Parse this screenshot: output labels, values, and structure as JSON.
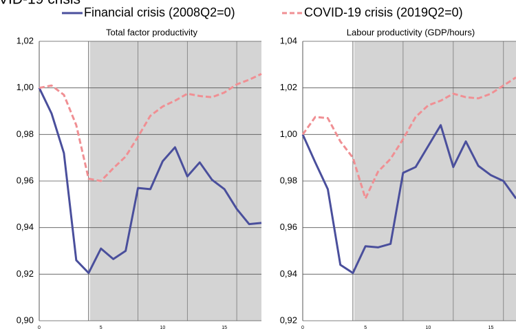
{
  "header": {
    "title": "VID-19 crisis"
  },
  "chart_data": [
    {
      "type": "line",
      "title": "Total factor productivity",
      "x": [
        0,
        1,
        2,
        3,
        4,
        5,
        6,
        7,
        8,
        9,
        10,
        11,
        12,
        13,
        14,
        15,
        16,
        17,
        18
      ],
      "series": [
        {
          "name": "Financial crisis (2008Q2=0)",
          "color": "#4a4f9c",
          "dash": false,
          "values": [
            1.0,
            0.989,
            0.972,
            0.926,
            0.9205,
            0.931,
            0.9265,
            0.93,
            0.957,
            0.9565,
            0.9685,
            0.9745,
            0.962,
            0.968,
            0.9605,
            0.9565,
            0.948,
            0.9415,
            0.942
          ]
        },
        {
          "name": "COVID-19 crisis (2019Q2=0)",
          "color": "#f08f93",
          "dash": true,
          "values": [
            1.0,
            1.001,
            0.997,
            0.984,
            0.961,
            0.96,
            0.9655,
            0.9705,
            0.979,
            0.988,
            0.992,
            0.9945,
            0.9975,
            0.9965,
            0.996,
            0.998,
            1.0015,
            1.0035,
            1.006
          ]
        }
      ],
      "xlim": [
        0,
        18
      ],
      "xticks": [
        0,
        5,
        10,
        15
      ],
      "xgrid": [
        4,
        8,
        12,
        16
      ],
      "shade_from": 4,
      "ylim": [
        0.9,
        1.02
      ],
      "yticks": [
        {
          "value": 0.9,
          "label": "0,90"
        },
        {
          "value": 0.92,
          "label": "0,92"
        },
        {
          "value": 0.94,
          "label": "0,94"
        },
        {
          "value": 0.96,
          "label": "0,96"
        },
        {
          "value": 0.98,
          "label": "0,98"
        },
        {
          "value": 1.0,
          "label": "1,00"
        },
        {
          "value": 1.02,
          "label": "1,02"
        }
      ],
      "grid": true
    },
    {
      "type": "line",
      "title": "Labour productivity (GDP/hours)",
      "x": [
        0,
        1,
        2,
        3,
        4,
        5,
        6,
        7,
        8,
        9,
        10,
        11,
        12,
        13,
        14,
        15,
        16,
        17
      ],
      "series": [
        {
          "name": "Financial crisis (2008Q2=0)",
          "color": "#4a4f9c",
          "dash": false,
          "values": [
            1.0,
            0.988,
            0.9765,
            0.944,
            0.9405,
            0.952,
            0.9515,
            0.953,
            0.9835,
            0.986,
            0.995,
            1.004,
            0.986,
            0.997,
            0.9865,
            0.9825,
            0.98,
            0.9725
          ]
        },
        {
          "name": "COVID-19 crisis (2019Q2=0)",
          "color": "#f08f93",
          "dash": true,
          "values": [
            1.0,
            1.0075,
            1.007,
            0.997,
            0.99,
            0.9725,
            0.984,
            0.9895,
            0.998,
            1.0075,
            1.0125,
            1.0145,
            1.0175,
            1.016,
            1.0155,
            1.0175,
            1.021,
            1.0245
          ]
        }
      ],
      "xlim": [
        0,
        17
      ],
      "xticks": [
        0,
        5,
        10,
        15
      ],
      "xgrid": [
        4,
        8,
        12,
        16
      ],
      "shade_from": 4,
      "ylim": [
        0.92,
        1.04
      ],
      "yticks": [
        {
          "value": 0.92,
          "label": "0,92"
        },
        {
          "value": 0.94,
          "label": "0,94"
        },
        {
          "value": 0.96,
          "label": "0,96"
        },
        {
          "value": 0.98,
          "label": "0,98"
        },
        {
          "value": 1.0,
          "label": "1,00"
        },
        {
          "value": 1.02,
          "label": "1,02"
        },
        {
          "value": 1.04,
          "label": "1,04"
        }
      ],
      "grid": true
    }
  ]
}
